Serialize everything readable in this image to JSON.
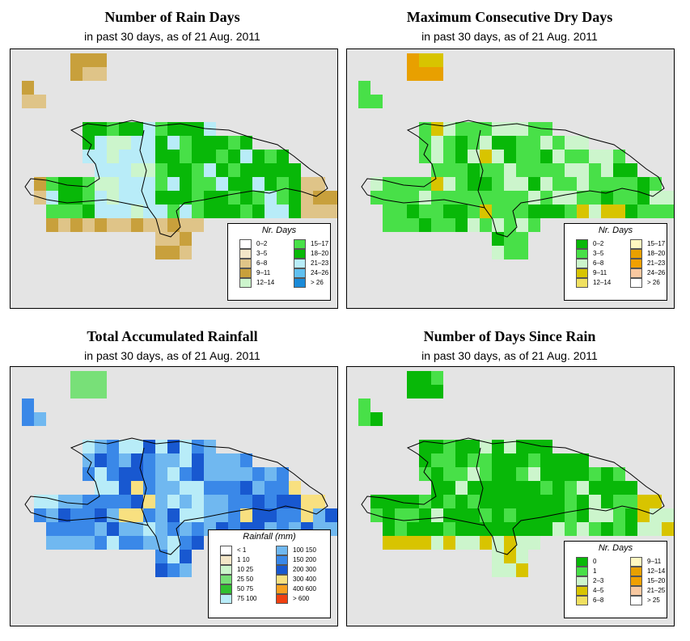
{
  "panels": [
    {
      "title": "Number of Rain Days",
      "subtitle": "in past 30 days, as of  21 Aug. 2011",
      "legend_title": "Nr. Days",
      "legend_items": [
        {
          "label": "0–2",
          "color": "#ffffff"
        },
        {
          "label": "3–5",
          "color": "#f3e6c8"
        },
        {
          "label": "6–8",
          "color": "#dfc488"
        },
        {
          "label": "9–11",
          "color": "#c8a03c"
        },
        {
          "label": "12–14",
          "color": "#ccf5cc"
        },
        {
          "label": "15–17",
          "color": "#48e048"
        },
        {
          "label": "18–20",
          "color": "#08b808"
        },
        {
          "label": "21–23",
          "color": "#b8ecf8"
        },
        {
          "label": "24–26",
          "color": "#60c0f0"
        },
        {
          "label": "> 26",
          "color": "#1a8ad8"
        }
      ],
      "scheme": "rain"
    },
    {
      "title": "Maximum Consecutive Dry Days",
      "subtitle": "in past 30 days, as of  21 Aug. 2011",
      "legend_title": "Nr. Days",
      "legend_items": [
        {
          "label": "0–2",
          "color": "#08b808"
        },
        {
          "label": "3–5",
          "color": "#48e048"
        },
        {
          "label": "6–8",
          "color": "#ccf5cc"
        },
        {
          "label": "9–11",
          "color": "#d8c400"
        },
        {
          "label": "12–14",
          "color": "#f0e060"
        },
        {
          "label": "15–17",
          "color": "#fff8c0"
        },
        {
          "label": "18–20",
          "color": "#e8a000"
        },
        {
          "label": "21–23",
          "color": "#f0a000"
        },
        {
          "label": "24–26",
          "color": "#f8c8a0"
        },
        {
          "label": "> 26",
          "color": "#ffffff"
        }
      ],
      "scheme": "dry"
    },
    {
      "title": "Total Accumulated Rainfall",
      "subtitle": "in past 30 days, as of  21 Aug. 2011",
      "legend_title": "Rainfall (mm)",
      "legend_items": [
        {
          "label": "< 1",
          "color": "#ffffff"
        },
        {
          "label": "1    10",
          "color": "#f3e6c8"
        },
        {
          "label": "10    25",
          "color": "#ccf5cc"
        },
        {
          "label": "25    50",
          "color": "#78e078"
        },
        {
          "label": "50    75",
          "color": "#30c030"
        },
        {
          "label": "75  100",
          "color": "#b8ecf8"
        },
        {
          "label": "100  150",
          "color": "#70b8f0"
        },
        {
          "label": "150  200",
          "color": "#3a88e8"
        },
        {
          "label": "200  300",
          "color": "#1858d0"
        },
        {
          "label": "300  400",
          "color": "#f8e080"
        },
        {
          "label": "400  600",
          "color": "#f8a020"
        },
        {
          "label": "> 600",
          "color": "#f04010"
        }
      ],
      "scheme": "total"
    },
    {
      "title": "Number of Days Since Rain",
      "subtitle": "in past 30 days, as of  21 Aug. 2011",
      "legend_title": "Nr. Days",
      "legend_items": [
        {
          "label": "0",
          "color": "#08b808"
        },
        {
          "label": "1",
          "color": "#48e048"
        },
        {
          "label": "2–3",
          "color": "#ccf5cc"
        },
        {
          "label": "4–5",
          "color": "#d8c400"
        },
        {
          "label": "6–8",
          "color": "#f0e060"
        },
        {
          "label": "9–11",
          "color": "#fff8c0"
        },
        {
          "label": "12–14",
          "color": "#e8a000"
        },
        {
          "label": "15–20",
          "color": "#f0a000"
        },
        {
          "label": "21–25",
          "color": "#f8c8a0"
        },
        {
          "label": "> 25",
          "color": "#ffffff"
        }
      ],
      "scheme": "since"
    }
  ]
}
